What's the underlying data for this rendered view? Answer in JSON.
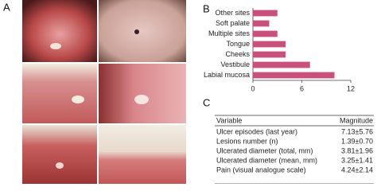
{
  "panels": {
    "a": "A",
    "b": "B",
    "c": "C"
  },
  "chart_data": {
    "type": "bar",
    "orientation": "horizontal",
    "categories": [
      "Other sites",
      "Soft palate",
      "Multiple sites",
      "Tongue",
      "Cheeks",
      "Vestibule",
      "Labial mucosa"
    ],
    "values": [
      3,
      2,
      3,
      4,
      4,
      7,
      10
    ],
    "color": "#c9507a",
    "xlim": [
      0,
      12
    ],
    "xticks": [
      0,
      6,
      12
    ]
  },
  "table": {
    "header": [
      "Variable",
      "Magnitude"
    ],
    "rows": [
      [
        "Ulcer episodes (last year)",
        "7.13±5.76"
      ],
      [
        "Lesions number (n)",
        "1.39±0.70"
      ],
      [
        "Ulcerated diameter (total, mm)",
        "3.81±1.96"
      ],
      [
        "Ulcerated diameter (mean, mm)",
        "3.25±1.41"
      ],
      [
        "Pain (visual analogue scale)",
        "4.24±2.14"
      ]
    ]
  }
}
